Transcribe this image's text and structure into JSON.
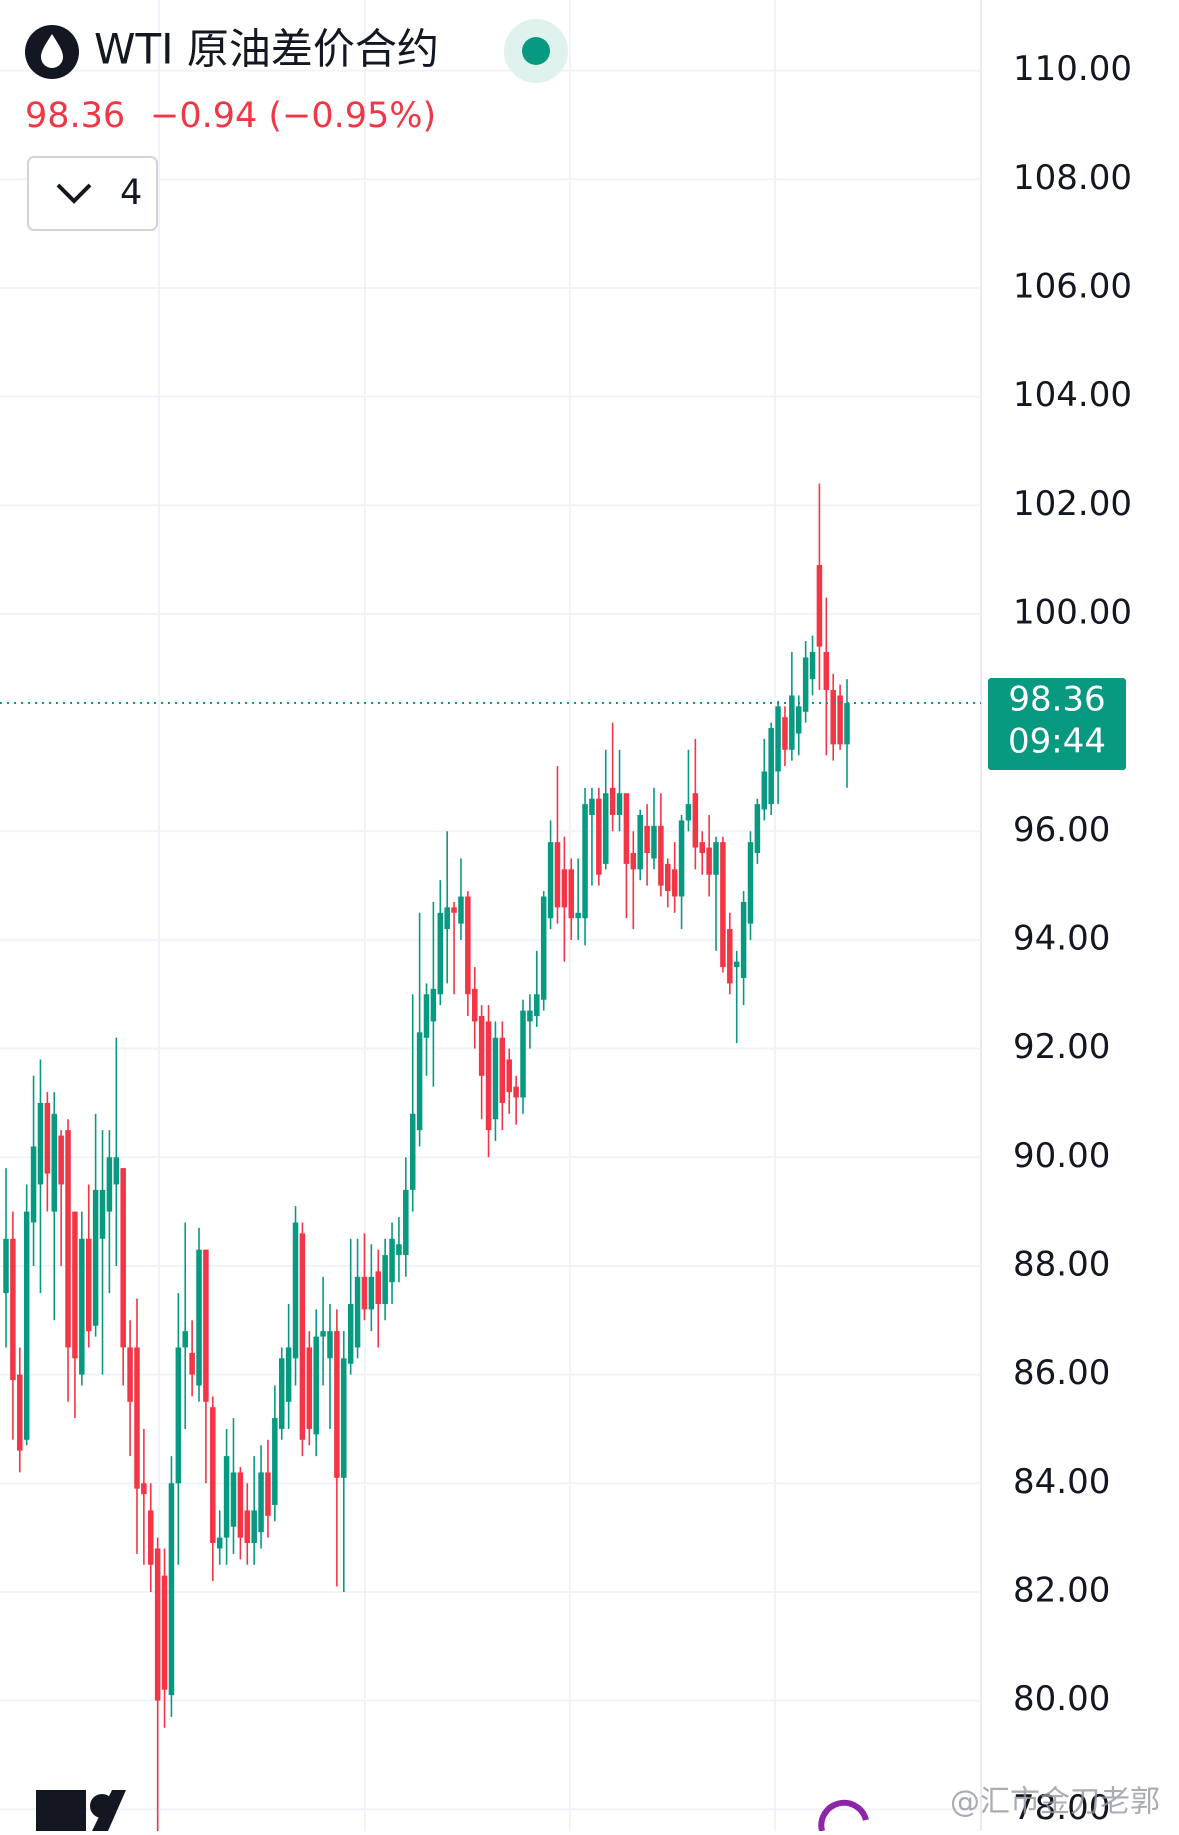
{
  "chart_data": {
    "type": "candlestick",
    "title": "WTI 原油差价合约",
    "last_price": 98.36,
    "change": "−0.94 (−0.95%)",
    "last_time": "09:44",
    "interval": "4",
    "watermark": "@汇市金刀老郭",
    "up_color": "#089981",
    "down_color": "#f23645",
    "grid": true,
    "ylim": [
      77.6,
      111.3
    ],
    "yticks": [
      {
        "value": 78,
        "label": "78.00"
      },
      {
        "value": 80,
        "label": "80.00"
      },
      {
        "value": 82,
        "label": "82.00"
      },
      {
        "value": 84,
        "label": "84.00"
      },
      {
        "value": 86,
        "label": "86.00"
      },
      {
        "value": 88,
        "label": "88.00"
      },
      {
        "value": 90,
        "label": "90.00"
      },
      {
        "value": 92,
        "label": "92.00"
      },
      {
        "value": 94,
        "label": "94.00"
      },
      {
        "value": 96,
        "label": "96.00"
      },
      {
        "value": 100,
        "label": "100.00"
      },
      {
        "value": 102,
        "label": "102.00"
      },
      {
        "value": 104,
        "label": "104.00"
      },
      {
        "value": 106,
        "label": "106.00"
      },
      {
        "value": 108,
        "label": "108.00"
      },
      {
        "value": 110,
        "label": "110.00"
      }
    ],
    "open": [
      87.5,
      88.5,
      86,
      84.8,
      88.8,
      89.5,
      91,
      89,
      90.4,
      90.5,
      89,
      86,
      88.5,
      86.9,
      88.5,
      89,
      89.5,
      89.8,
      86.5,
      86.5,
      84,
      83.5,
      82.8,
      82.3,
      80.1,
      84,
      86.5,
      86.4,
      85.8,
      88.3,
      85.4,
      82.8,
      83,
      83.2,
      84.2,
      83.5,
      82.9,
      83.1,
      84.2,
      83.6,
      85,
      85.5,
      86.3,
      88.6,
      86.5,
      84.9,
      86.7,
      86.3,
      86.8,
      84.1,
      86.2,
      86.5,
      87.8,
      87.2,
      87.9,
      87.3,
      87.7,
      88.2,
      88.2,
      89.4,
      90.5,
      92.2,
      92.5,
      93,
      94.2,
      94.6,
      94.3,
      94.8,
      93.1,
      92.6,
      92.5,
      90.7,
      92.2,
      91.8,
      91.3,
      91.1,
      92.5,
      92.6,
      92.9,
      94.4,
      95.8,
      95.3,
      95.3,
      94.4,
      94.4,
      96.3,
      96.6,
      95.4,
      96.8,
      96.3,
      96.7,
      95.6,
      95.3,
      96.1,
      95.5,
      96.1,
      95.4,
      95.3,
      94.8,
      96.2,
      96.7,
      95.8,
      95.7,
      95.2,
      95.8,
      94.2,
      93.5,
      93.3,
      94.3,
      95.6,
      96.4,
      96.5,
      97.1,
      98.1,
      97.5,
      97.8,
      98.2,
      98.8,
      100.9,
      99.3,
      98.6,
      98.5,
      97.6
    ],
    "high": [
      89.8,
      89,
      86.5,
      89.5,
      91.5,
      91.8,
      91.2,
      91.2,
      90.5,
      90.7,
      89,
      89,
      89.5,
      90.8,
      90.5,
      90.5,
      92.2,
      89.8,
      87,
      87.4,
      85,
      84,
      83,
      82.8,
      84.5,
      87.5,
      88.8,
      87,
      88.7,
      88.3,
      85.6,
      83.5,
      85,
      85.2,
      84.3,
      84,
      84.5,
      84.7,
      84.8,
      85.8,
      86.5,
      87.3,
      89.1,
      88.8,
      86.8,
      87.2,
      87.8,
      87.3,
      87.2,
      86.8,
      88.5,
      88.5,
      88.6,
      88.4,
      88.3,
      88.5,
      88.8,
      88.9,
      90,
      93,
      94.5,
      93.2,
      94.7,
      95.1,
      96,
      94.7,
      95.5,
      94.9,
      93.5,
      92.8,
      92.8,
      92.5,
      92.5,
      92,
      91.5,
      92.9,
      93,
      93.8,
      94.9,
      96.2,
      97.2,
      95.9,
      95.5,
      95.5,
      96.8,
      96.8,
      96.8,
      97.5,
      98,
      97.5,
      96.7,
      96,
      96.4,
      96.5,
      96.8,
      96.7,
      95.5,
      95.8,
      96.3,
      97.5,
      97.7,
      96,
      96.3,
      95.9,
      95.9,
      94.5,
      93.8,
      94.9,
      96,
      96.6,
      97.7,
      98,
      98.4,
      98.3,
      99.3,
      98.5,
      99.5,
      99.6,
      102.4,
      100.3,
      98.9,
      98.7,
      98.8
    ],
    "low": [
      86.5,
      84.8,
      84.2,
      84.7,
      88,
      87.5,
      89,
      87,
      88,
      85.5,
      85.2,
      85.8,
      86.5,
      86.7,
      86,
      87.5,
      88,
      85.8,
      84.5,
      82.7,
      82.5,
      82,
      77.3,
      79.5,
      79.7,
      82.5,
      85,
      85.6,
      85.5,
      84,
      82.2,
      82.5,
      82.5,
      82.7,
      82.6,
      82.5,
      82.5,
      82.8,
      83,
      83.3,
      84.8,
      85,
      85.8,
      84.5,
      84.7,
      84.5,
      85.8,
      85,
      82.1,
      82,
      86,
      86.3,
      87,
      86.8,
      86.5,
      87,
      87.3,
      87.7,
      87.8,
      89,
      90.2,
      91.5,
      91.3,
      92.8,
      93.2,
      93,
      94,
      92.6,
      92,
      90.7,
      90,
      90.3,
      90.5,
      90.8,
      90.6,
      90.8,
      92,
      92.4,
      92.7,
      94.2,
      94.3,
      93.6,
      94,
      94,
      93.9,
      95,
      95,
      95.3,
      96,
      96,
      94.4,
      94.2,
      95.1,
      95,
      95.3,
      94.8,
      94.6,
      94.5,
      94.2,
      96,
      95.3,
      95.2,
      94.8,
      93.8,
      93.4,
      93,
      92.1,
      92.8,
      94,
      95.4,
      96.2,
      96.3,
      96.5,
      97.2,
      97.3,
      97.4,
      98,
      98.5,
      98.6,
      97.4,
      97.3,
      97.5,
      96.8
    ],
    "close": [
      88.5,
      85.9,
      84.6,
      89,
      90.2,
      91,
      89.7,
      90.8,
      89.5,
      86.5,
      86.3,
      88.5,
      86.8,
      89.4,
      89.4,
      90,
      90,
      86.5,
      85.5,
      83.9,
      83.8,
      82.5,
      80,
      80.2,
      84,
      86.5,
      86.8,
      86,
      88.3,
      85.5,
      82.9,
      83,
      84.5,
      84.2,
      83,
      82.9,
      83.5,
      84.2,
      83.4,
      85.2,
      86.3,
      86.5,
      88.8,
      84.8,
      85,
      86.7,
      86.8,
      86.8,
      84.1,
      86.3,
      87.3,
      87.8,
      87.2,
      87.8,
      87.3,
      88.2,
      88.5,
      88.4,
      89.4,
      90.8,
      92.3,
      93,
      93.1,
      94.5,
      94.6,
      94.5,
      94.8,
      93,
      92.5,
      91.5,
      90.5,
      92.2,
      91,
      91.2,
      91.1,
      92.7,
      92.7,
      93,
      94.8,
      95.8,
      94.6,
      94.6,
      94.4,
      94.5,
      96.5,
      96.6,
      95.2,
      96.7,
      96.3,
      96.7,
      95.4,
      95.3,
      96.3,
      95.6,
      96.1,
      95,
      94.9,
      94.8,
      96.2,
      96.5,
      95.7,
      95.6,
      95.2,
      95.8,
      93.5,
      93.2,
      93.6,
      94.7,
      95.8,
      96.5,
      97.1,
      97.9,
      98.3,
      97.5,
      98.5,
      98.3,
      99.2,
      99.3,
      99.4,
      98.6,
      97.6,
      97.6,
      98.36
    ]
  }
}
